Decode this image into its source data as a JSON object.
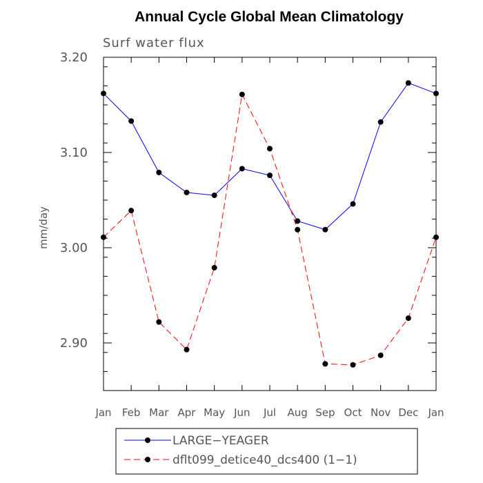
{
  "chart_data": {
    "type": "line",
    "title": "Annual Cycle Global Mean Climatology",
    "subtitle": "Surf water flux",
    "xlabel": "",
    "ylabel": "mm/day",
    "categories": [
      "Jan",
      "Feb",
      "Mar",
      "Apr",
      "May",
      "Jun",
      "Jul",
      "Aug",
      "Sep",
      "Oct",
      "Nov",
      "Dec",
      "Jan"
    ],
    "ylim": [
      2.85,
      3.2
    ],
    "yticks": [
      2.9,
      3.0,
      3.1,
      3.2
    ],
    "ytick_labels": [
      "2.90",
      "3.00",
      "3.10",
      "3.20"
    ],
    "series": [
      {
        "name": "LARGE−YEAGER",
        "color": "#0000ff",
        "style": "solid",
        "values": [
          3.162,
          3.133,
          3.079,
          3.058,
          3.055,
          3.083,
          3.076,
          3.028,
          3.019,
          3.046,
          3.132,
          3.173,
          3.162
        ]
      },
      {
        "name": "dflt099_detice40_dcs400 (1−1)",
        "color": "#ff0000",
        "style": "dashed",
        "values": [
          3.011,
          3.039,
          2.922,
          2.893,
          2.979,
          3.161,
          3.104,
          3.019,
          2.878,
          2.877,
          2.887,
          2.926,
          3.011
        ]
      }
    ],
    "legend_position": "bottom"
  }
}
